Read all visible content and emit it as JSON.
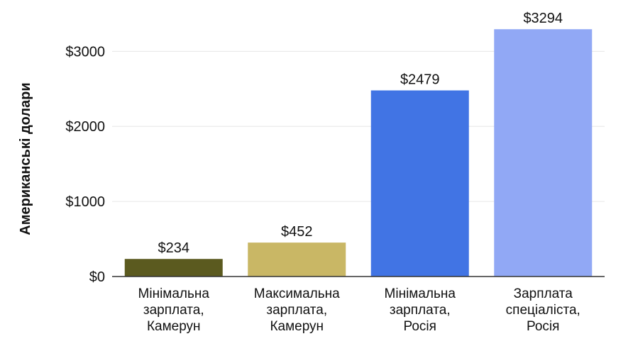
{
  "chart_data": {
    "type": "bar",
    "categories": [
      [
        "Мінімальна",
        "зарплата,",
        "Камерун"
      ],
      [
        "Максимальна",
        "зарплата,",
        "Камерун"
      ],
      [
        "Мінімальна",
        "зарплата,",
        "Росія"
      ],
      [
        "Зарплата",
        "спеціаліста,",
        "Росія"
      ]
    ],
    "values": [
      234,
      452,
      2479,
      3294
    ],
    "value_labels": [
      "$234",
      "$452",
      "$2479",
      "$3294"
    ],
    "colors": [
      "#5b5a1f",
      "#c9b765",
      "#4174e4",
      "#91a8f5"
    ],
    "ylabel": "Американські долари",
    "yticks": [
      0,
      1000,
      2000,
      3000
    ],
    "ytick_labels": [
      "$0",
      "$1000",
      "$2000",
      "$3000"
    ],
    "ylim": [
      0,
      3400
    ],
    "grid": true
  }
}
